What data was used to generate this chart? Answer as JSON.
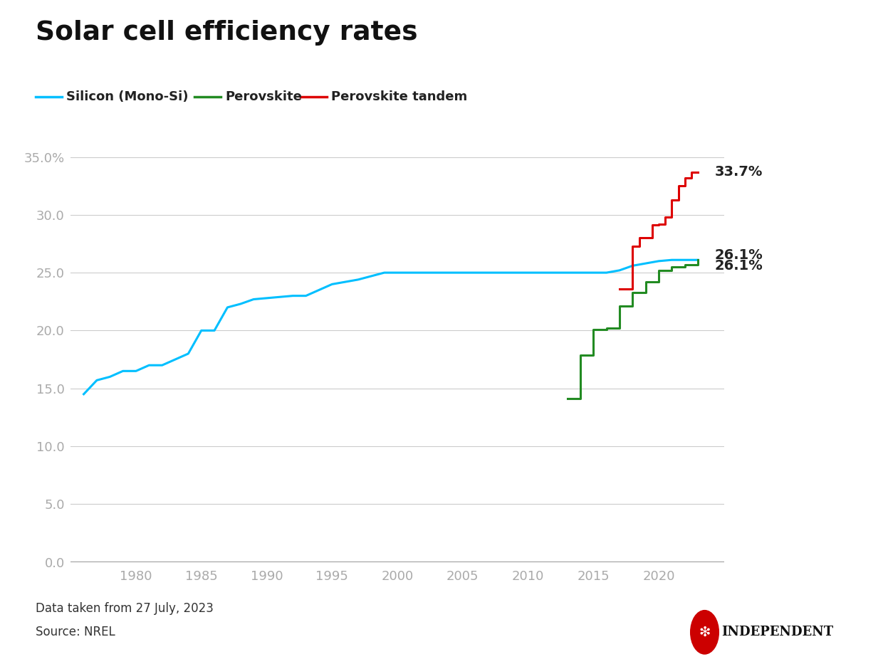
{
  "title": "Solar cell efficiency rates",
  "footnote1": "Data taken from 27 July, 2023",
  "footnote2": "Source: NREL",
  "background_color": "#ffffff",
  "grid_color": "#cccccc",
  "text_color": "#333333",
  "axis_label_color": "#aaaaaa",
  "silicon_color": "#00bfff",
  "perovskite_color": "#228B22",
  "tandem_color": "#dd0000",
  "silicon_data": [
    [
      1976,
      14.5
    ],
    [
      1977,
      15.7
    ],
    [
      1978,
      16.0
    ],
    [
      1979,
      16.5
    ],
    [
      1980,
      16.5
    ],
    [
      1981,
      17.0
    ],
    [
      1982,
      17.0
    ],
    [
      1983,
      17.5
    ],
    [
      1984,
      18.0
    ],
    [
      1985,
      20.0
    ],
    [
      1986,
      20.0
    ],
    [
      1987,
      22.0
    ],
    [
      1988,
      22.3
    ],
    [
      1989,
      22.7
    ],
    [
      1990,
      22.8
    ],
    [
      1991,
      22.9
    ],
    [
      1992,
      23.0
    ],
    [
      1993,
      23.0
    ],
    [
      1994,
      23.5
    ],
    [
      1995,
      24.0
    ],
    [
      1996,
      24.2
    ],
    [
      1997,
      24.4
    ],
    [
      1998,
      24.7
    ],
    [
      1999,
      25.0
    ],
    [
      2000,
      25.0
    ],
    [
      2001,
      25.0
    ],
    [
      2002,
      25.0
    ],
    [
      2003,
      25.0
    ],
    [
      2004,
      25.0
    ],
    [
      2005,
      25.0
    ],
    [
      2006,
      25.0
    ],
    [
      2007,
      25.0
    ],
    [
      2008,
      25.0
    ],
    [
      2009,
      25.0
    ],
    [
      2010,
      25.0
    ],
    [
      2011,
      25.0
    ],
    [
      2012,
      25.0
    ],
    [
      2013,
      25.0
    ],
    [
      2014,
      25.0
    ],
    [
      2015,
      25.0
    ],
    [
      2016,
      25.0
    ],
    [
      2017,
      25.2
    ],
    [
      2018,
      25.6
    ],
    [
      2019,
      25.8
    ],
    [
      2020,
      26.0
    ],
    [
      2021,
      26.1
    ],
    [
      2022,
      26.1
    ],
    [
      2023,
      26.1
    ]
  ],
  "perovskite_data": [
    [
      2013,
      14.1
    ],
    [
      2014,
      17.9
    ],
    [
      2015,
      20.1
    ],
    [
      2016,
      20.2
    ],
    [
      2017,
      22.1
    ],
    [
      2018,
      23.3
    ],
    [
      2019,
      24.2
    ],
    [
      2020,
      25.2
    ],
    [
      2021,
      25.5
    ],
    [
      2022,
      25.7
    ],
    [
      2023,
      26.1
    ]
  ],
  "tandem_data": [
    [
      2017,
      23.6
    ],
    [
      2018,
      27.3
    ],
    [
      2018.5,
      28.0
    ],
    [
      2019,
      28.0
    ],
    [
      2019.5,
      29.1
    ],
    [
      2020,
      29.2
    ],
    [
      2020.5,
      29.8
    ],
    [
      2021,
      31.3
    ],
    [
      2021.5,
      32.5
    ],
    [
      2022,
      33.2
    ],
    [
      2022.5,
      33.7
    ],
    [
      2023,
      33.7
    ]
  ],
  "ylim": [
    0,
    37
  ],
  "xlim": [
    1975,
    2025
  ],
  "yticks": [
    0.0,
    5.0,
    10.0,
    15.0,
    20.0,
    25.0,
    30.0,
    35.0
  ],
  "xticks": [
    1980,
    1985,
    1990,
    1995,
    2000,
    2005,
    2010,
    2015,
    2020
  ]
}
